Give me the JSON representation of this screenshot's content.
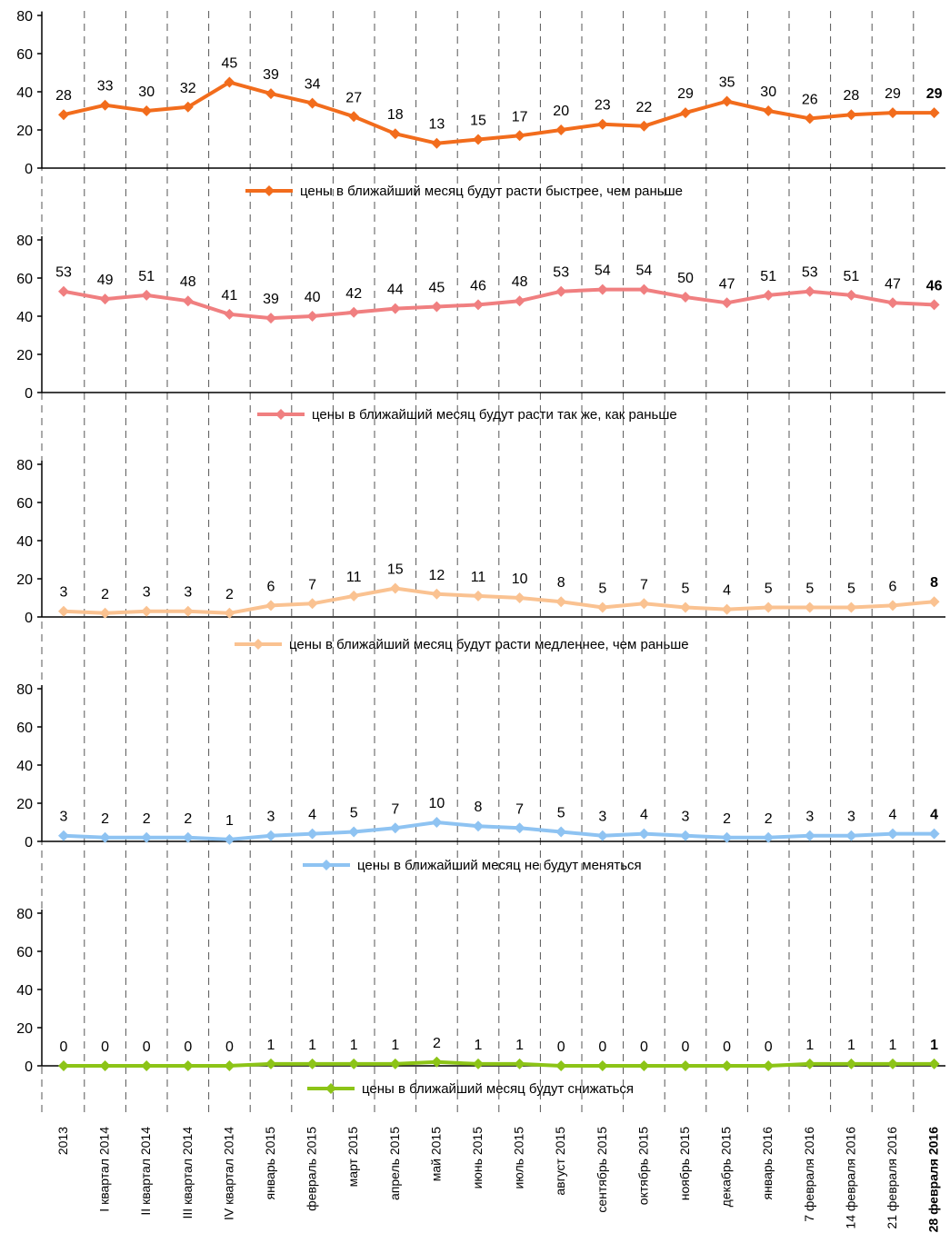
{
  "chart_data": {
    "type": "line",
    "categories": [
      "2013",
      "I квартал 2014",
      "II квартал 2014",
      "III квартал 2014",
      "IV квартал 2014",
      "январь 2015",
      "февраль 2015",
      "март 2015",
      "апрель 2015",
      "май 2015",
      "июнь 2015",
      "июль 2015",
      "август 2015",
      "сентябрь 2015",
      "октябрь 2015",
      "ноябрь 2015",
      "декабрь 2015",
      "январь 2016",
      "7 февраля 2016",
      "14 февраля 2016",
      "21 февраля 2016",
      "28 февраля 2016"
    ],
    "ylim": [
      0,
      80
    ],
    "yticks": [
      0,
      20,
      40,
      60,
      80
    ],
    "grid": "vertical dashed",
    "series": [
      {
        "name": "цены в ближайший месяц будут расти быстрее, чем раньше",
        "color": "#F26C1C",
        "values": [
          28,
          33,
          30,
          32,
          45,
          39,
          34,
          27,
          18,
          13,
          15,
          17,
          20,
          23,
          22,
          29,
          35,
          30,
          26,
          28,
          29,
          29
        ]
      },
      {
        "name": "цены в ближайший месяц будут расти так же, как раньше",
        "color": "#F07F80",
        "values": [
          53,
          49,
          51,
          48,
          41,
          39,
          40,
          42,
          44,
          45,
          46,
          48,
          53,
          54,
          54,
          50,
          47,
          51,
          53,
          51,
          47,
          46
        ]
      },
      {
        "name": "цены в ближайший месяц будут расти медленнее, чем раньше",
        "color": "#FAC291",
        "values": [
          3,
          2,
          3,
          3,
          2,
          6,
          7,
          11,
          15,
          12,
          11,
          10,
          8,
          5,
          7,
          5,
          4,
          5,
          5,
          5,
          6,
          8
        ]
      },
      {
        "name": "цены в ближайший месяц не будут меняться",
        "color": "#8EC3F2",
        "values": [
          3,
          2,
          2,
          2,
          1,
          3,
          4,
          5,
          7,
          10,
          8,
          7,
          5,
          3,
          4,
          3,
          2,
          2,
          3,
          3,
          4,
          4
        ]
      },
      {
        "name": "цены в ближайший месяц будут снижаться",
        "color": "#8CC417",
        "values": [
          0,
          0,
          0,
          0,
          0,
          1,
          1,
          1,
          1,
          2,
          1,
          1,
          0,
          0,
          0,
          0,
          0,
          0,
          1,
          1,
          1,
          1
        ]
      }
    ]
  }
}
